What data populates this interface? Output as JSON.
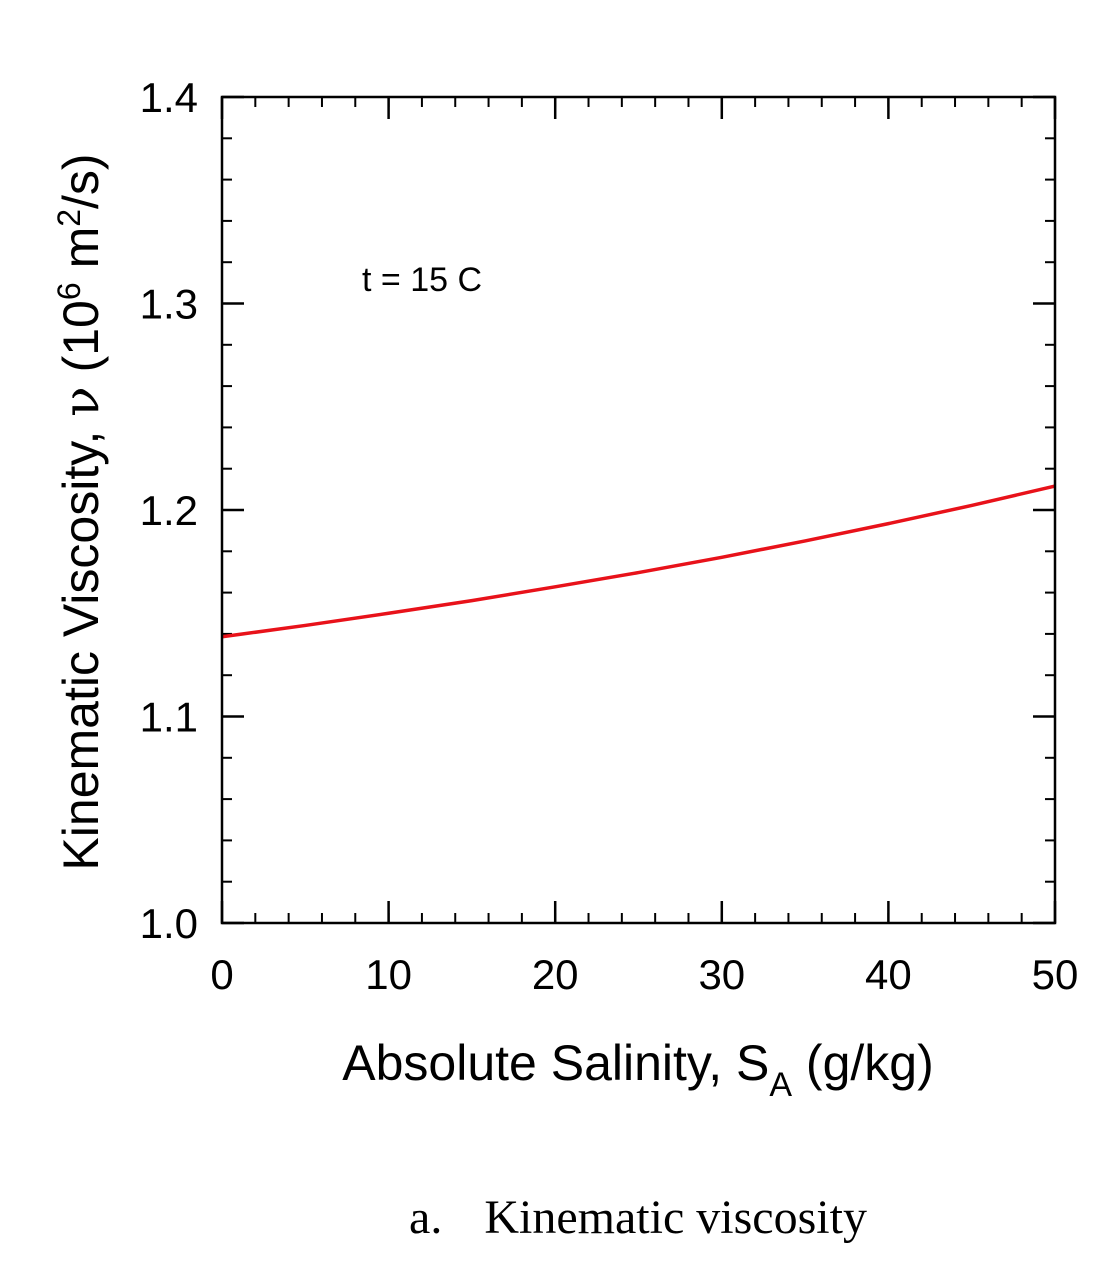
{
  "chart_data": {
    "type": "line",
    "title": "",
    "x_ticks": [
      "0",
      "10",
      "20",
      "30",
      "40",
      "50"
    ],
    "y_ticks": [
      "1.0",
      "1.1",
      "1.2",
      "1.3",
      "1.4"
    ],
    "xlim": [
      0,
      50
    ],
    "ylim": [
      1.0,
      1.4
    ],
    "xlabel": {
      "main": "Absolute Salinity, S",
      "sub": "A",
      "unit": " (g/kg)"
    },
    "ylabel": {
      "part1": "Kinematic Viscosity, ",
      "symbol": "ν",
      "part2": " (10",
      "sup1": "6",
      "part3": " m",
      "sup2": "2",
      "part4": "/s)"
    },
    "annotation": "t = 15 C",
    "grid": false,
    "series": [
      {
        "color": "#e8121a",
        "x": [
          0,
          5,
          10,
          15,
          20,
          25,
          30,
          35,
          40,
          45,
          50
        ],
        "y": [
          1.1386,
          1.1441,
          1.15,
          1.1561,
          1.1628,
          1.1697,
          1.1771,
          1.185,
          1.1934,
          1.2022,
          1.2116
        ]
      }
    ]
  },
  "caption": {
    "label": "a.",
    "text": "Kinematic viscosity"
  }
}
